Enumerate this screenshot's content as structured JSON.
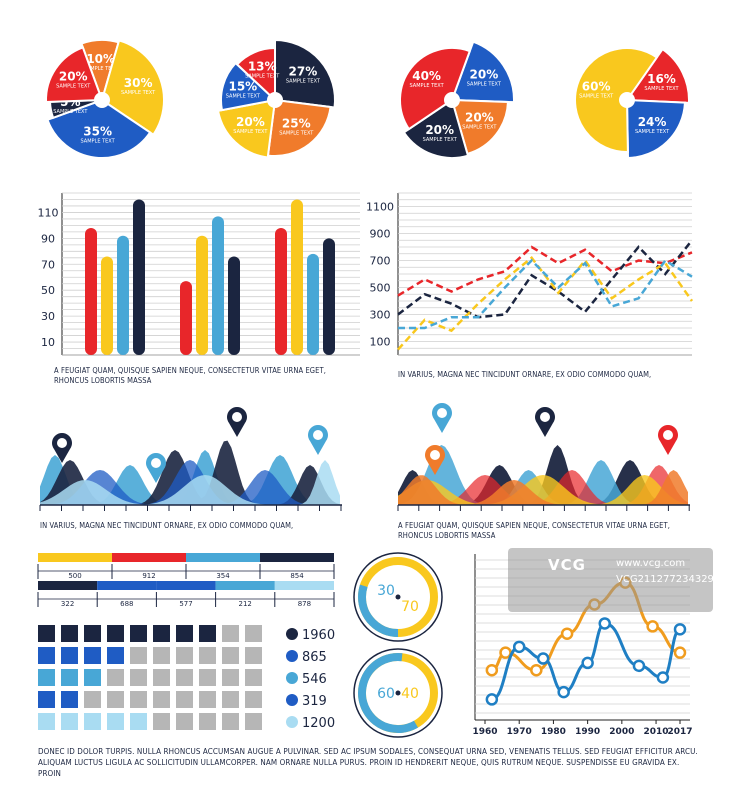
{
  "colors": {
    "red": "#e8262a",
    "orange": "#f07b2b",
    "yellow": "#f9c81e",
    "blue": "#1f5cc4",
    "navy": "#1b2540",
    "lightblue": "#48a7d6",
    "paleblue": "#a9dcf2",
    "gray": "#b6b6b6"
  },
  "pies": [
    {
      "slices": [
        {
          "pct": 10,
          "label": "10%",
          "sub": "SAMPLE TEXT",
          "color": "#f07b2b"
        },
        {
          "pct": 30,
          "label": "30%",
          "sub": "SAMPLE TEXT",
          "color": "#f9c81e"
        },
        {
          "pct": 35,
          "label": "35%",
          "sub": "SAMPLE TEXT",
          "color": "#1f5cc4"
        },
        {
          "pct": 5,
          "label": "5%",
          "sub": "SAMPLE TEXT",
          "color": "#1b2540"
        },
        {
          "pct": 20,
          "label": "20%",
          "sub": "SAMPLE TEXT",
          "color": "#e8262a"
        }
      ]
    },
    {
      "slices": [
        {
          "pct": 27,
          "label": "27%",
          "sub": "SAMPLE TEXT",
          "color": "#1b2540"
        },
        {
          "pct": 25,
          "label": "25%",
          "sub": "SAMPLE TEXT",
          "color": "#f07b2b"
        },
        {
          "pct": 20,
          "label": "20%",
          "sub": "SAMPLE TEXT",
          "color": "#f9c81e"
        },
        {
          "pct": 15,
          "label": "15%",
          "sub": "SAMPLE TEXT",
          "color": "#1f5cc4"
        },
        {
          "pct": 13,
          "label": "13%",
          "sub": "SAMPLE TEXT",
          "color": "#e8262a"
        }
      ]
    },
    {
      "slices": [
        {
          "pct": 20,
          "label": "20%",
          "sub": "SAMPLE TEXT",
          "color": "#1f5cc4"
        },
        {
          "pct": 20,
          "label": "20%",
          "sub": "SAMPLE TEXT",
          "color": "#f07b2b"
        },
        {
          "pct": 20,
          "label": "20%",
          "sub": "SAMPLE TEXT",
          "color": "#1b2540"
        },
        {
          "pct": 40,
          "label": "40%",
          "sub": "SAMPLE TEXT",
          "color": "#e8262a"
        }
      ]
    },
    {
      "slices": [
        {
          "pct": 16,
          "label": "16%",
          "sub": "SAMPLE TEXT",
          "color": "#e8262a"
        },
        {
          "pct": 24,
          "label": "24%",
          "sub": "SAMPLE TEXT",
          "color": "#1f5cc4"
        },
        {
          "pct": 60,
          "label": "60%",
          "sub": "SAMPLE TEXT",
          "color": "#f9c81e"
        }
      ]
    }
  ],
  "chart_data": [
    {
      "type": "bar",
      "yticks": [
        10,
        30,
        50,
        70,
        90,
        110
      ],
      "ylim": [
        0,
        125
      ],
      "groups": [
        {
          "values": [
            98,
            76,
            92,
            120
          ],
          "colors": [
            "#e8262a",
            "#f9c81e",
            "#48a7d6",
            "#1b2540"
          ]
        },
        {
          "values": [
            57,
            92,
            107,
            76
          ],
          "colors": [
            "#e8262a",
            "#f9c81e",
            "#48a7d6",
            "#1b2540"
          ]
        },
        {
          "values": [
            98,
            120,
            78,
            90
          ],
          "colors": [
            "#e8262a",
            "#f9c81e",
            "#48a7d6",
            "#1b2540"
          ]
        }
      ]
    },
    {
      "type": "line",
      "yticks": [
        100,
        300,
        500,
        700,
        900,
        1100
      ],
      "ylim": [
        0,
        1200
      ],
      "series": [
        {
          "color": "#e8262a",
          "values": [
            440,
            560,
            470,
            560,
            620,
            800,
            680,
            780,
            620,
            700,
            680,
            760
          ]
        },
        {
          "color": "#1b2540",
          "values": [
            300,
            450,
            380,
            280,
            300,
            590,
            470,
            320,
            560,
            800,
            600,
            850
          ]
        },
        {
          "color": "#f9c81e",
          "values": [
            40,
            260,
            180,
            380,
            560,
            720,
            460,
            700,
            420,
            560,
            680,
            400
          ]
        },
        {
          "color": "#48a7d6",
          "values": [
            200,
            200,
            280,
            280,
            500,
            700,
            500,
            680,
            360,
            420,
            700,
            580
          ]
        }
      ]
    },
    {
      "type": "area",
      "series": [
        {
          "color": "#48a7d6",
          "opacity": 0.9
        },
        {
          "color": "#1b2540",
          "opacity": 0.9
        },
        {
          "color": "#1f5cc4",
          "opacity": 0.75
        },
        {
          "color": "#a9dcf2",
          "opacity": 0.85
        }
      ],
      "markers": [
        {
          "color": "#1b2540"
        },
        {
          "color": "#48a7d6"
        },
        {
          "color": "#1b2540"
        },
        {
          "color": "#48a7d6"
        }
      ]
    },
    {
      "type": "area",
      "series": [
        {
          "color": "#1b2540",
          "opacity": 0.95
        },
        {
          "color": "#48a7d6",
          "opacity": 0.85
        },
        {
          "color": "#e8262a",
          "opacity": 0.7
        },
        {
          "color": "#f9c81e",
          "opacity": 0.8
        },
        {
          "color": "#f07b2b",
          "opacity": 0.85
        }
      ],
      "markers": [
        {
          "color": "#f07b2b"
        },
        {
          "color": "#48a7d6"
        },
        {
          "color": "#1b2540"
        },
        {
          "color": "#e8262a"
        }
      ]
    },
    {
      "type": "bar",
      "segments": [
        {
          "label": "500",
          "color": "#f9c81e"
        },
        {
          "label": "912",
          "color": "#e8262a"
        },
        {
          "label": "354",
          "color": "#48a7d6"
        },
        {
          "label": "854",
          "color": "#1b2540"
        }
      ]
    },
    {
      "type": "bar",
      "segments": [
        {
          "label": "322",
          "color": "#1b2540"
        },
        {
          "label": "688",
          "color": "#1f5cc4"
        },
        {
          "label": "577",
          "color": "#1f5cc4"
        },
        {
          "label": "212",
          "color": "#48a7d6"
        },
        {
          "label": "878",
          "color": "#a9dcf2"
        }
      ]
    },
    {
      "type": "table",
      "rows": [
        {
          "filled": 8,
          "color": "#1b2540",
          "label": "1960"
        },
        {
          "filled": 4,
          "color": "#1f5cc4",
          "label": "865"
        },
        {
          "filled": 3,
          "color": "#48a7d6",
          "label": "546"
        },
        {
          "filled": 2,
          "color": "#1f5cc4",
          "label": "319"
        },
        {
          "filled": 5,
          "color": "#a9dcf2",
          "label": "1200"
        }
      ]
    },
    {
      "type": "pie",
      "rings": [
        {
          "inner": "30",
          "outer": "70",
          "inner_color": "#48a7d6",
          "outer_color": "#f9c81e",
          "value": 30
        },
        {
          "inner": "60",
          "outer": "40",
          "inner_color": "#48a7d6",
          "outer_color": "#f9c81e",
          "value": 60
        }
      ]
    },
    {
      "type": "line",
      "x": [
        1960,
        1970,
        1980,
        1990,
        2000,
        2010,
        2017
      ],
      "xticks": [
        "1960",
        "1970",
        "1980",
        "1990",
        "2000",
        "2010",
        "2017"
      ],
      "series": [
        {
          "color": "#f09c1e",
          "points": [
            [
              1962,
              0.3
            ],
            [
              1966,
              0.42
            ],
            [
              1975,
              0.3
            ],
            [
              1984,
              0.55
            ],
            [
              1992,
              0.75
            ],
            [
              2001,
              0.9
            ],
            [
              2009,
              0.6
            ],
            [
              2017,
              0.42
            ]
          ]
        },
        {
          "color": "#1f7fc4",
          "points": [
            [
              1962,
              0.1
            ],
            [
              1970,
              0.46
            ],
            [
              1977,
              0.38
            ],
            [
              1983,
              0.15
            ],
            [
              1990,
              0.35
            ],
            [
              1995,
              0.62
            ],
            [
              2005,
              0.33
            ],
            [
              2012,
              0.25
            ],
            [
              2017,
              0.58
            ]
          ]
        }
      ]
    }
  ],
  "captions": {
    "bar_chart": "A FEUGIAT QUAM, QUISQUE SAPIEN NEQUE, CONSECTETUR VITAE URNA EGET, RHONCUS LOBORTIS MASSA",
    "line_chart": "IN VARIUS, MAGNA NEC TINCIDUNT ORNARE, EX ODIO COMMODO QUAM,",
    "area_left": "IN VARIUS, MAGNA NEC TINCIDUNT ORNARE, EX ODIO COMMODO QUAM,",
    "area_right": "A FEUGIAT QUAM, QUISQUE SAPIEN NEQUE, CONSECTETUR VITAE URNA EGET, RHONCUS LOBORTIS MASSA",
    "footer": "DONEC ID DOLOR TURPIS. NULLA RHONCUS ACCUMSAN AUGUE A PULVINAR. SED AC IPSUM SODALES, CONSEQUAT URNA SED, VENENATIS TELLUS. SED FEUGIAT EFFICITUR ARCU. ALIQUAM LUCTUS LIGULA AC SOLLICITUDIN ULLAMCORPER. NAM ORNARE NULLA PURUS. PROIN ID HENDRERIT NEQUE, QUIS RUTRUM NEQUE. SUSPENDISSE EU GRAVIDA EX. PROIN"
  },
  "watermark": {
    "logo": "VCG",
    "site": "www.vcg.com",
    "id": "VCG211277234329"
  }
}
